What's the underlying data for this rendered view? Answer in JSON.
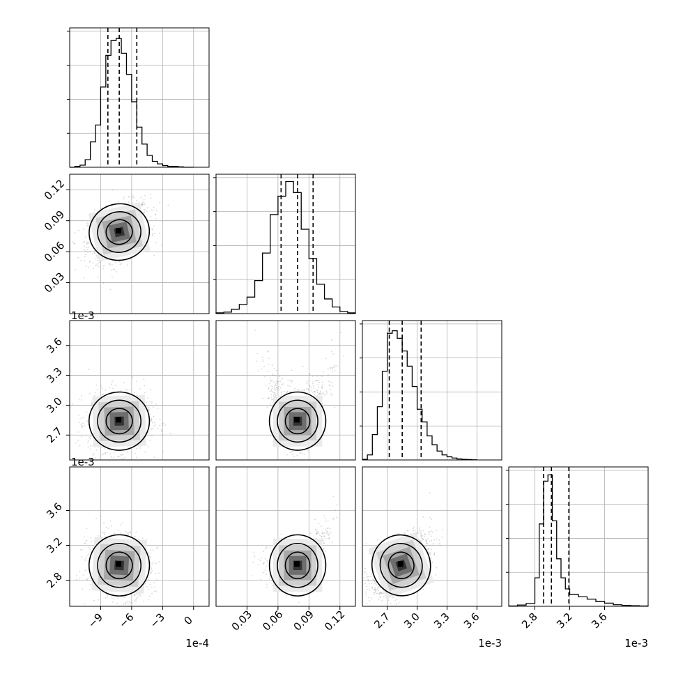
{
  "chart_data": {
    "type": "corner",
    "n_parameters": 4,
    "grid": true,
    "scales": [
      {
        "offset": "1e-4",
        "range": [
          -12,
          1.5
        ],
        "ticks": [
          -9,
          -6,
          -3,
          0
        ],
        "tick_labels": [
          "−9",
          "−6",
          "−3",
          "0"
        ]
      },
      {
        "offset": "",
        "range": [
          0.0,
          0.135
        ],
        "ticks": [
          0.03,
          0.06,
          0.09,
          0.12
        ],
        "tick_labels": [
          "0.03",
          "0.06",
          "0.09",
          "0.12"
        ]
      },
      {
        "offset": "1e-3",
        "range": [
          2.45,
          3.85
        ],
        "ticks": [
          2.7,
          3.0,
          3.3,
          3.6
        ],
        "tick_labels": [
          "2.7",
          "3.0",
          "3.3",
          "3.6"
        ]
      },
      {
        "offset": "1e-3",
        "range": [
          2.5,
          4.1
        ],
        "ticks": [
          2.8,
          3.2,
          3.6
        ],
        "tick_labels": [
          "2.8",
          "3.2",
          "3.6"
        ]
      }
    ],
    "marginals": [
      {
        "param": 0,
        "bins": [
          -12,
          -11.5,
          -11,
          -10.5,
          -10,
          -9.5,
          -9,
          -8.5,
          -8,
          -7.5,
          -7,
          -6.5,
          -6,
          -5.5,
          -5,
          -4.5,
          -4,
          -3.5,
          -3,
          -2.5,
          -2,
          -1.5,
          -1,
          -0.5,
          0
        ],
        "counts": [
          0,
          2,
          5,
          18,
          60,
          100,
          190,
          265,
          300,
          305,
          270,
          220,
          155,
          95,
          55,
          28,
          14,
          8,
          4,
          2,
          2,
          1,
          0,
          0
        ],
        "quantiles": [
          -8.3,
          -7.2,
          -5.5
        ],
        "ylim": [
          0,
          330
        ]
      },
      {
        "param": 1,
        "bins": [
          0.0,
          0.0075,
          0.015,
          0.0225,
          0.03,
          0.0375,
          0.045,
          0.0525,
          0.06,
          0.0675,
          0.075,
          0.0825,
          0.09,
          0.0975,
          0.105,
          0.1125,
          0.12,
          0.1275,
          0.135
        ],
        "counts": [
          2,
          4,
          12,
          25,
          45,
          90,
          165,
          270,
          320,
          360,
          330,
          230,
          150,
          80,
          40,
          18,
          6,
          2
        ],
        "quantiles": [
          0.063,
          0.079,
          0.094
        ],
        "ylim": [
          0,
          380
        ]
      },
      {
        "param": 2,
        "bins": [
          2.45,
          2.5,
          2.55,
          2.6,
          2.65,
          2.7,
          2.75,
          2.8,
          2.85,
          2.9,
          2.95,
          3.0,
          3.05,
          3.1,
          3.15,
          3.2,
          3.25,
          3.3,
          3.35,
          3.4,
          3.45,
          3.5,
          3.55,
          3.6
        ],
        "counts": [
          5,
          40,
          200,
          420,
          700,
          1000,
          1020,
          960,
          860,
          740,
          580,
          400,
          300,
          190,
          120,
          70,
          40,
          25,
          15,
          8,
          5,
          3,
          1
        ],
        "quantiles": [
          2.72,
          2.85,
          3.04
        ],
        "ylim": [
          0,
          1100
        ]
      },
      {
        "param": 3,
        "bins": [
          2.5,
          2.6,
          2.7,
          2.8,
          2.85,
          2.9,
          2.95,
          3.0,
          3.05,
          3.1,
          3.15,
          3.2,
          3.3,
          3.4,
          3.5,
          3.6,
          3.7,
          3.8,
          3.9,
          4.0,
          4.1
        ],
        "counts": [
          2,
          8,
          18,
          180,
          520,
          790,
          830,
          540,
          300,
          180,
          110,
          75,
          60,
          45,
          30,
          20,
          10,
          6,
          4,
          2
        ],
        "quantiles": [
          2.9,
          2.99,
          3.19
        ],
        "ylim": [
          0,
          880
        ]
      }
    ],
    "pairs": [
      {
        "x": 0,
        "y": 1,
        "center": [
          -7.2,
          0.079
        ],
        "spread": [
          1.5,
          0.014
        ],
        "corr": 0.35
      },
      {
        "x": 0,
        "y": 2,
        "center": [
          -7.2,
          2.84
        ],
        "spread": [
          1.5,
          0.15
        ],
        "corr": 0.05
      },
      {
        "x": 1,
        "y": 2,
        "center": [
          0.079,
          2.84
        ],
        "spread": [
          0.014,
          0.15
        ],
        "corr": 0.0
      },
      {
        "x": 0,
        "y": 3,
        "center": [
          -7.2,
          2.97
        ],
        "spread": [
          1.5,
          0.18
        ],
        "corr": -0.1
      },
      {
        "x": 1,
        "y": 3,
        "center": [
          0.079,
          2.97
        ],
        "spread": [
          0.014,
          0.18
        ],
        "corr": 0.0
      },
      {
        "x": 2,
        "y": 3,
        "center": [
          2.84,
          2.97
        ],
        "spread": [
          0.15,
          0.18
        ],
        "corr": 0.55
      }
    ]
  }
}
